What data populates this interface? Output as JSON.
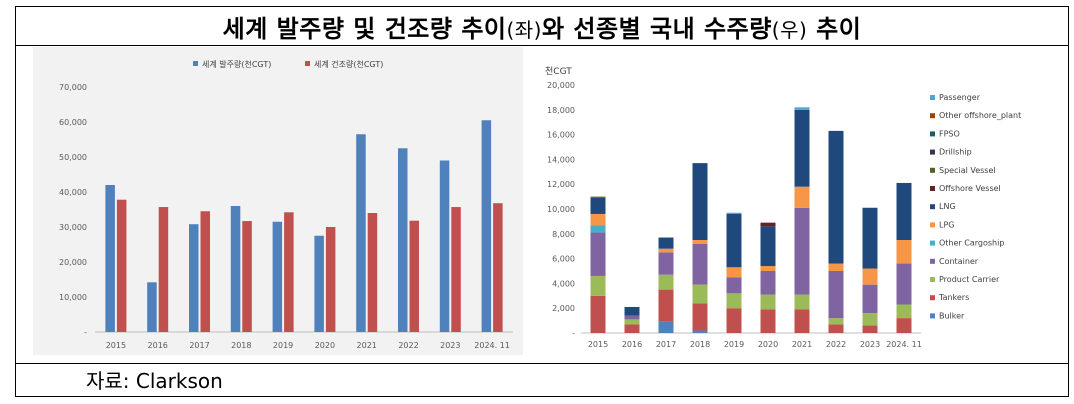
{
  "header": {
    "title_a": "세계 발주량 및 건조량 추이",
    "title_b": "(좌)",
    "title_c": "와 선종별 국내 수주량",
    "title_d": "(우)",
    "title_e": " 추이"
  },
  "footer": {
    "source": "자료: Clarkson"
  },
  "chart_data": [
    {
      "type": "bar",
      "categories": [
        "2015",
        "2016",
        "2017",
        "2018",
        "2019",
        "2020",
        "2021",
        "2022",
        "2023",
        "2024. 11"
      ],
      "ylim": [
        0,
        70000
      ],
      "yticks": [
        0,
        10000,
        20000,
        30000,
        40000,
        50000,
        60000,
        70000
      ],
      "ytick_labels": [
        "-",
        "10,000",
        "20,000",
        "30,000",
        "40,000",
        "50,000",
        "60,000",
        "70,000"
      ],
      "legend_position": "top",
      "grid": false,
      "series": [
        {
          "name": "세계 발주량(천CGT)",
          "color": "#4F81BD",
          "values": [
            42000,
            14200,
            30800,
            36000,
            31500,
            27500,
            56500,
            52500,
            49000,
            60500
          ]
        },
        {
          "name": "세계 건조량(천CGT)",
          "color": "#C0504D",
          "values": [
            37800,
            35700,
            34500,
            31700,
            34200,
            30000,
            34000,
            31800,
            35700,
            36800
          ]
        }
      ]
    },
    {
      "type": "bar",
      "stacked": true,
      "unit_label": "천CGT",
      "categories": [
        "2015",
        "2016",
        "2017",
        "2018",
        "2019",
        "2020",
        "2021",
        "2022",
        "2023",
        "2024. 11"
      ],
      "ylim": [
        0,
        20000
      ],
      "yticks": [
        0,
        2000,
        4000,
        6000,
        8000,
        10000,
        12000,
        14000,
        16000,
        18000,
        20000
      ],
      "ytick_labels": [
        "-",
        "2,000",
        "4,000",
        "6,000",
        "8,000",
        "10,000",
        "12,000",
        "14,000",
        "16,000",
        "18,000",
        "20,000"
      ],
      "legend_position": "right",
      "grid": false,
      "series": [
        {
          "name": "Bulker",
          "color": "#4F81BD",
          "values": [
            0,
            0,
            900,
            200,
            0,
            0,
            0,
            0,
            0,
            0
          ]
        },
        {
          "name": "Tankers",
          "color": "#C0504D",
          "values": [
            3000,
            700,
            2600,
            2200,
            2000,
            1900,
            1900,
            700,
            600,
            1200
          ]
        },
        {
          "name": "Product Carrier",
          "color": "#9BBB59",
          "values": [
            1600,
            400,
            1200,
            1500,
            1200,
            1200,
            1200,
            500,
            1000,
            1100
          ]
        },
        {
          "name": "Container",
          "color": "#8064A2",
          "values": [
            3500,
            300,
            1800,
            3300,
            1300,
            1900,
            7000,
            3800,
            2300,
            3300
          ]
        },
        {
          "name": "Other Cargoship",
          "color": "#4BACC6",
          "values": [
            600,
            0,
            0,
            0,
            0,
            0,
            0,
            0,
            0,
            0
          ]
        },
        {
          "name": "LPG",
          "color": "#F79646",
          "values": [
            900,
            0,
            300,
            300,
            800,
            400,
            1700,
            600,
            1300,
            1900
          ]
        },
        {
          "name": "LNG",
          "color": "#1F497D",
          "values": [
            1300,
            700,
            900,
            6200,
            4300,
            3200,
            6200,
            10700,
            4900,
            4600
          ]
        },
        {
          "name": "Offshore Vessel",
          "color": "#632523",
          "values": [
            0,
            0,
            0,
            0,
            0,
            300,
            0,
            0,
            0,
            0
          ]
        },
        {
          "name": "Special Vessel",
          "color": "#4F6228",
          "values": [
            100,
            0,
            0,
            0,
            0,
            0,
            0,
            0,
            0,
            0
          ]
        },
        {
          "name": "Drillship",
          "color": "#3F3151",
          "values": [
            0,
            0,
            0,
            0,
            0,
            0,
            0,
            0,
            0,
            0
          ]
        },
        {
          "name": "FPSO",
          "color": "#215967",
          "values": [
            0,
            0,
            0,
            0,
            0,
            0,
            0,
            0,
            0,
            0
          ]
        },
        {
          "name": "Other offshore_plant",
          "color": "#974806",
          "values": [
            0,
            0,
            0,
            0,
            0,
            0,
            0,
            0,
            0,
            0
          ]
        },
        {
          "name": "Passenger",
          "color": "#4FA3D8",
          "values": [
            0,
            0,
            0,
            0,
            100,
            0,
            200,
            0,
            0,
            0
          ]
        }
      ],
      "legend_order": [
        "Passenger",
        "Other offshore_plant",
        "FPSO",
        "Drillship",
        "Special Vessel",
        "Offshore Vessel",
        "LNG",
        "LPG",
        "Other Cargoship",
        "Container",
        "Product Carrier",
        "Tankers",
        "Bulker"
      ]
    }
  ]
}
